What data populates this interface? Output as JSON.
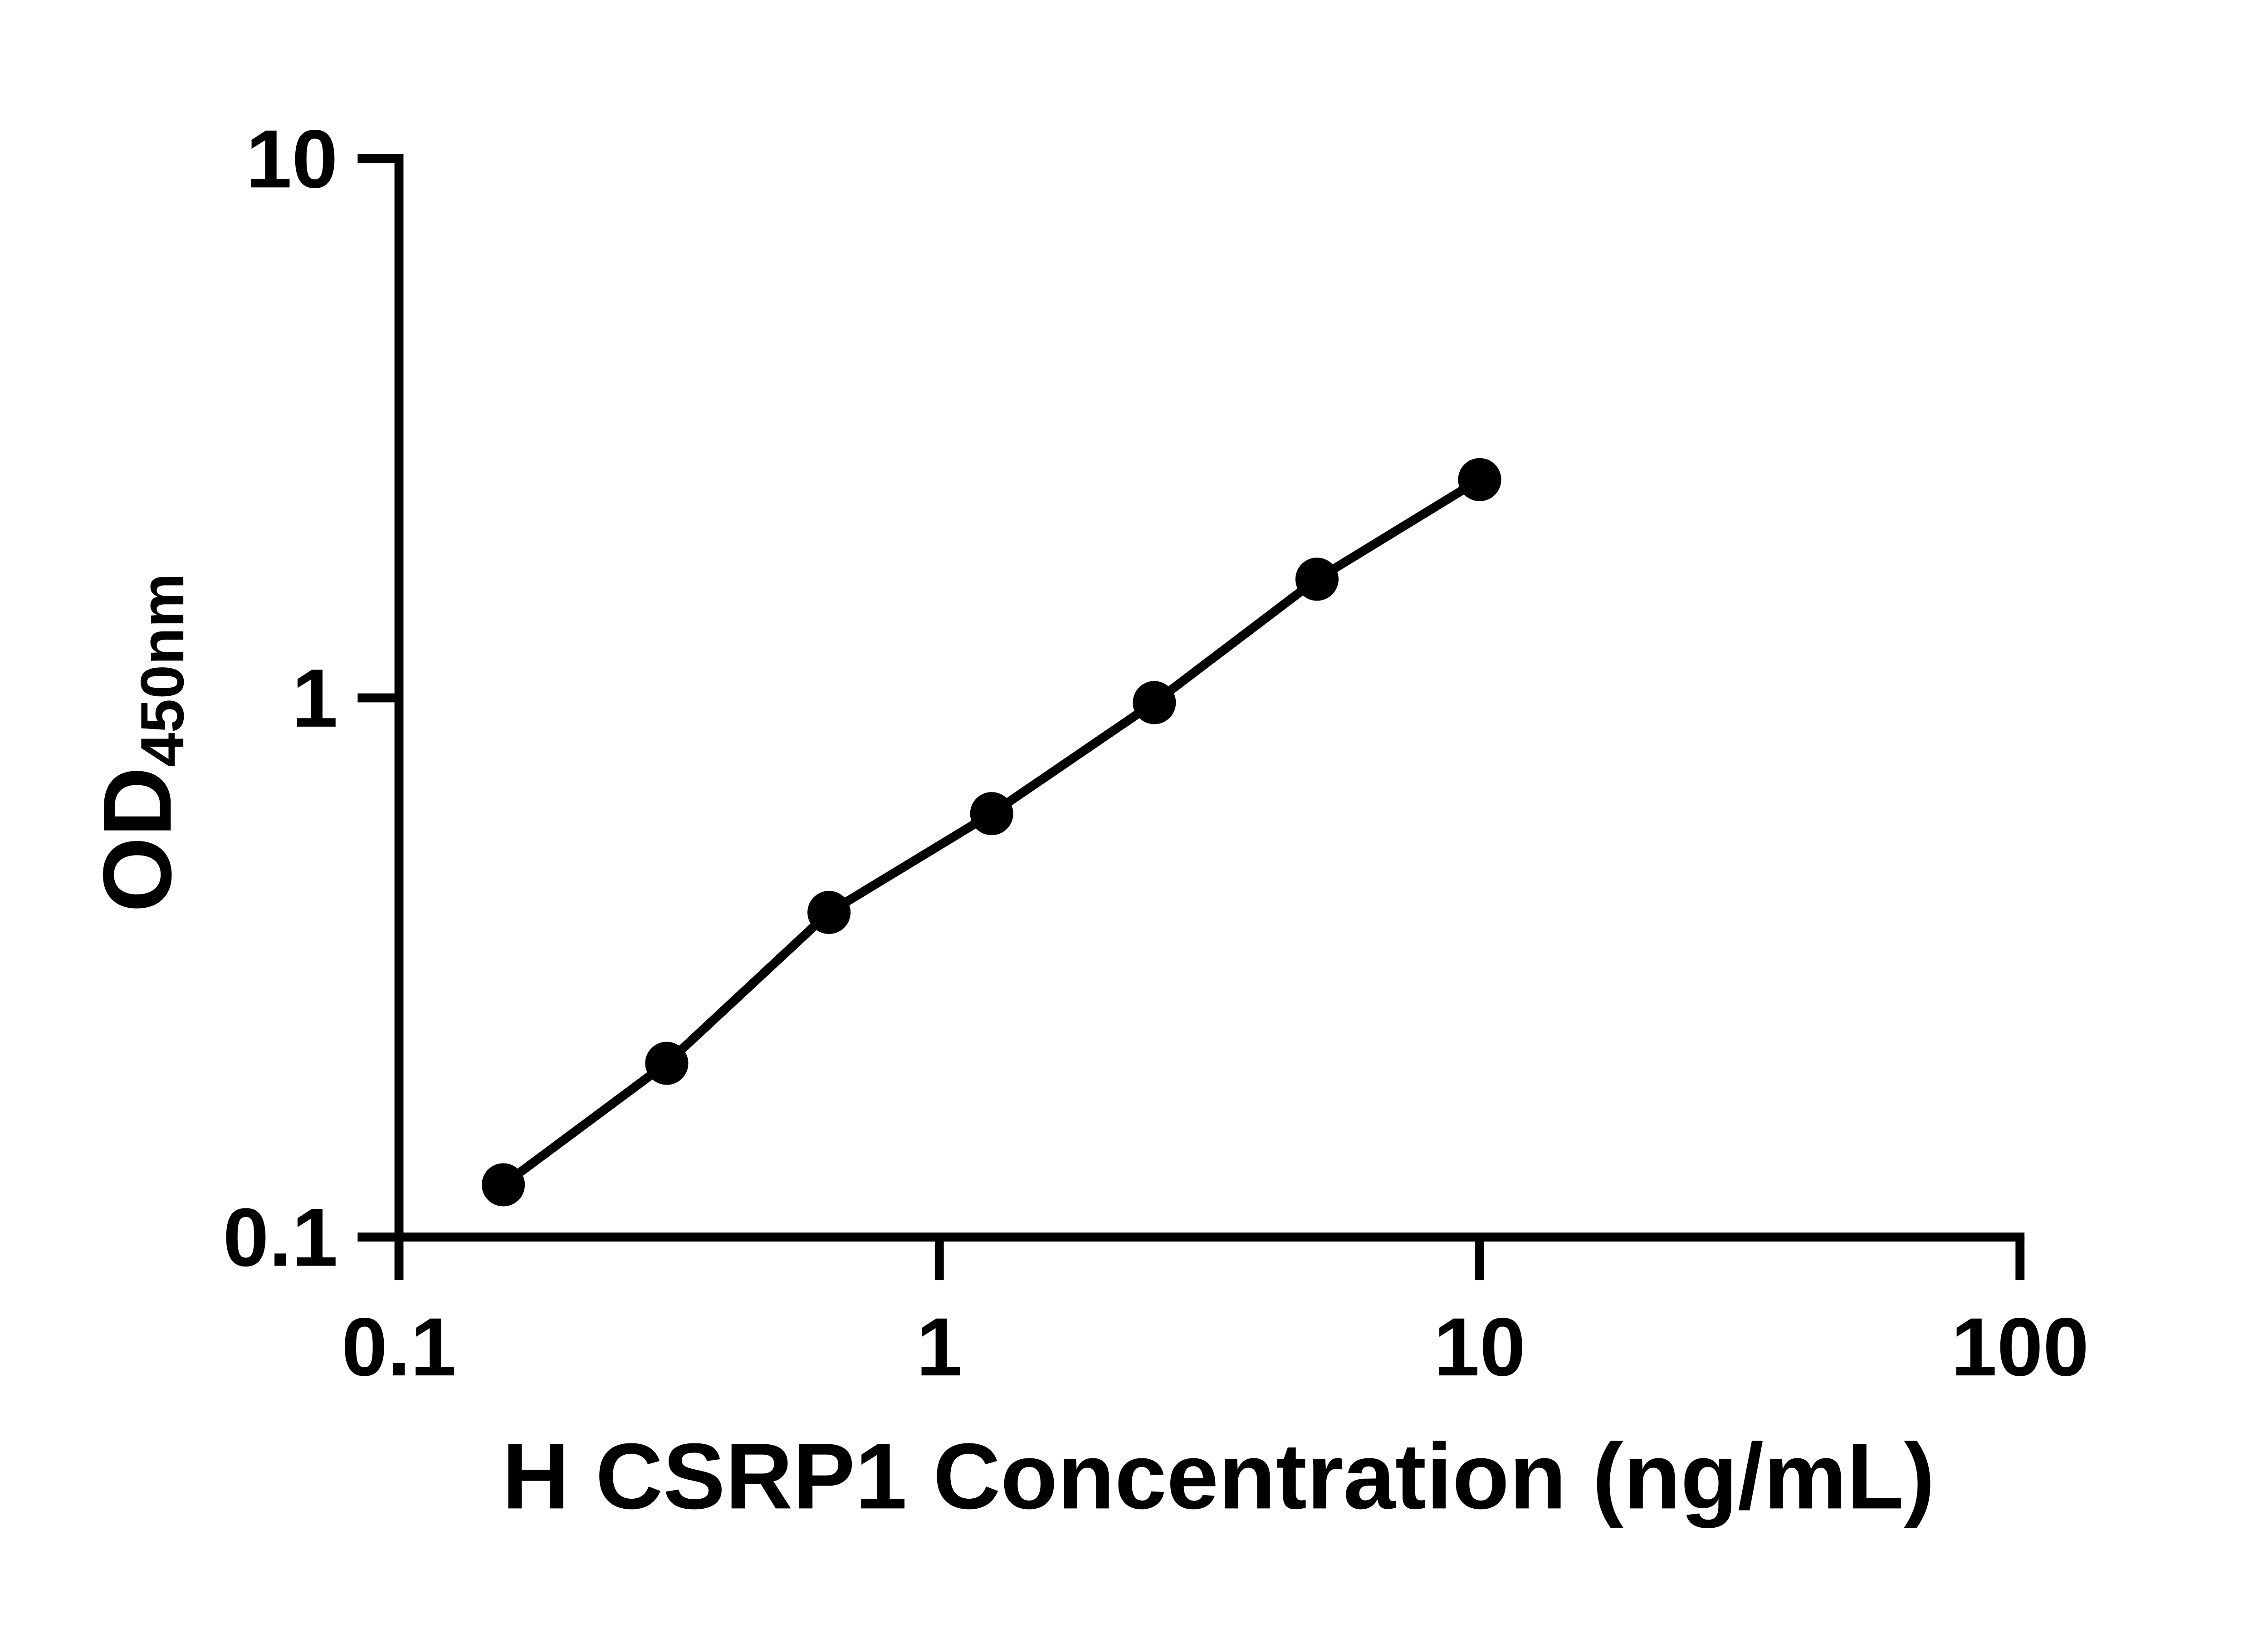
{
  "chart_data": {
    "type": "line",
    "title": "",
    "xlabel": "H CSRP1 Concentration (ng/mL)",
    "ylabel": "OD",
    "ylabel_subscript": "450nm",
    "x_scale": "log",
    "y_scale": "log",
    "xlim": [
      0.1,
      100
    ],
    "ylim": [
      0.1,
      10
    ],
    "x_ticks": {
      "values": [
        0.1,
        1,
        10,
        100
      ],
      "labels": [
        "0.1",
        "1",
        "10",
        "100"
      ]
    },
    "y_ticks": {
      "values": [
        10,
        1,
        0.1
      ],
      "labels": [
        "10",
        "1",
        "0.1"
      ]
    },
    "grid": false,
    "legend": false,
    "marker": "filled-circle",
    "marker_color": "#000000",
    "line_color": "#000000",
    "axis_color": "#000000",
    "background_color": "#ffffff",
    "series": [
      {
        "x": [
          0.156,
          0.313,
          0.625,
          1.25,
          2.5,
          5,
          10
        ],
        "y": [
          0.125,
          0.21,
          0.4,
          0.61,
          0.98,
          1.66,
          2.54
        ]
      }
    ]
  }
}
